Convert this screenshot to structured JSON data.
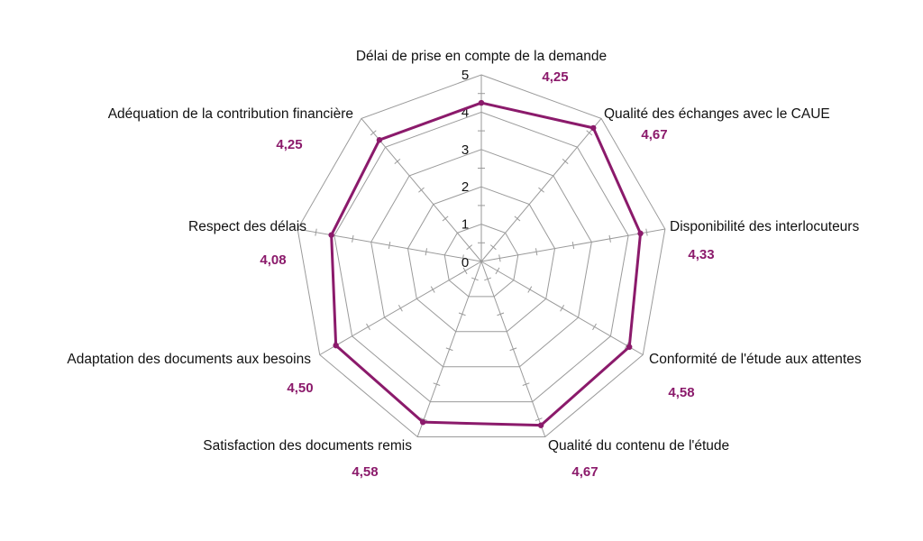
{
  "chart_data": {
    "type": "radar",
    "axes": [
      "Délai de prise en compte de la demande",
      "Qualité des échanges avec le CAUE",
      "Disponibilité des interlocuteurs",
      "Conformité de l'étude aux attentes",
      "Qualité du contenu de l'étude",
      "Satisfaction des documents remis",
      "Adaptation des documents aux besoins",
      "Respect des délais",
      "Adéquation de la contribution financière"
    ],
    "values": [
      4.25,
      4.67,
      4.33,
      4.58,
      4.67,
      4.58,
      4.5,
      4.08,
      4.25
    ],
    "value_labels": [
      "4,25",
      "4,67",
      "4,33",
      "4,58",
      "4,67",
      "4,58",
      "4,50",
      "4,08",
      "4,25"
    ],
    "r_ticks": [
      "0",
      "1",
      "2",
      "3",
      "4",
      "5"
    ],
    "r_range": [
      0,
      5
    ],
    "grid": true,
    "legend": "none"
  },
  "colors": {
    "series": "#8b1a6b",
    "value_text": "#8b1a6b",
    "grid": "#9a9a9a",
    "text": "#111111"
  }
}
